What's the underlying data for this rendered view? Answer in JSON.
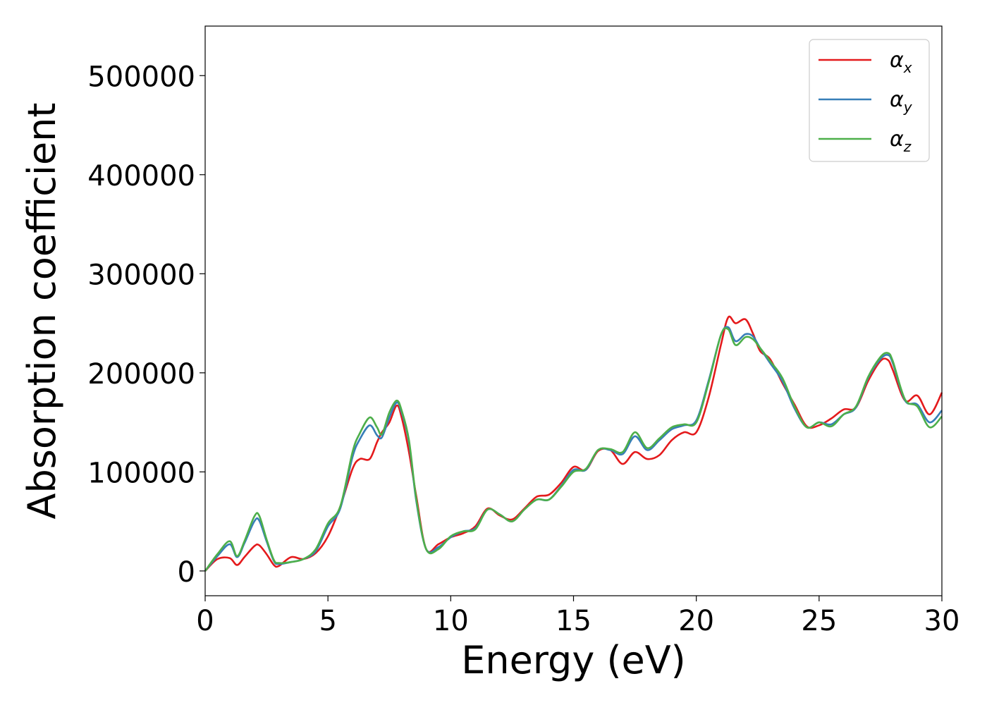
{
  "chart_data": {
    "type": "line",
    "xlabel": "Energy (eV)",
    "ylabel": "Absorption coefficient",
    "xlim": [
      0,
      30
    ],
    "ylim": [
      -25000,
      550000
    ],
    "xticks": [
      0,
      5,
      10,
      15,
      20,
      25,
      30
    ],
    "yticks": [
      0,
      100000,
      200000,
      300000,
      400000,
      500000
    ],
    "grid": false,
    "legend_position": "top-right",
    "x": [
      0,
      0.5,
      1,
      1.3,
      1.6,
      2,
      2.2,
      2.5,
      2.8,
      3,
      3.5,
      4,
      4.5,
      5,
      5.5,
      6,
      6.3,
      6.7,
      7,
      7.2,
      7.5,
      7.8,
      8,
      8.3,
      8.6,
      9,
      9.5,
      10,
      10.5,
      11,
      11.5,
      12,
      12.5,
      13,
      13.5,
      14,
      14.5,
      15,
      15.5,
      16,
      16.5,
      17,
      17.5,
      18,
      18.5,
      19,
      19.5,
      20,
      20.5,
      21,
      21.3,
      21.6,
      22,
      22.3,
      22.6,
      23,
      23.5,
      24,
      24.5,
      25,
      25.5,
      26,
      26.5,
      27,
      27.5,
      27.8,
      28,
      28.5,
      29,
      29.5,
      30
    ],
    "series": [
      {
        "name": "α",
        "subscript": "x",
        "color": "#e41a1c",
        "values": [
          0,
          12000,
          13000,
          6000,
          14000,
          25000,
          26000,
          17000,
          6000,
          5000,
          14000,
          12000,
          18000,
          35000,
          65000,
          103000,
          113000,
          113000,
          130000,
          140000,
          150000,
          167000,
          155000,
          120000,
          75000,
          22000,
          27000,
          34000,
          38000,
          45000,
          63000,
          56000,
          52000,
          63000,
          75000,
          77000,
          89000,
          105000,
          102000,
          121000,
          122000,
          108000,
          120000,
          113000,
          117000,
          132000,
          140000,
          140000,
          175000,
          228000,
          256000,
          250000,
          254000,
          240000,
          222000,
          214000,
          190000,
          168000,
          146000,
          147000,
          154000,
          163000,
          165000,
          192000,
          212000,
          213000,
          203000,
          172000,
          177000,
          158000,
          180000
        ]
      },
      {
        "name": "α",
        "subscript": "y",
        "color": "#377eb8",
        "values": [
          0,
          15000,
          27000,
          14000,
          28000,
          50000,
          51000,
          30000,
          10000,
          7000,
          9000,
          12000,
          20000,
          45000,
          63000,
          115000,
          133000,
          147000,
          137000,
          135000,
          155000,
          170000,
          160000,
          130000,
          70000,
          22000,
          24000,
          34000,
          40000,
          43000,
          62000,
          57000,
          50000,
          62000,
          72000,
          72000,
          86000,
          102000,
          102000,
          122000,
          122000,
          118000,
          136000,
          122000,
          132000,
          143000,
          147000,
          152000,
          192000,
          238000,
          246000,
          232000,
          239000,
          237000,
          225000,
          210000,
          192000,
          164000,
          145000,
          150000,
          148000,
          158000,
          165000,
          195000,
          214000,
          218000,
          210000,
          172000,
          168000,
          150000,
          162000
        ]
      },
      {
        "name": "α",
        "subscript": "z",
        "color": "#4daf4a",
        "values": [
          0,
          17000,
          30000,
          15000,
          30000,
          55000,
          56000,
          32000,
          11000,
          8000,
          9000,
          12000,
          22000,
          48000,
          65000,
          120000,
          139000,
          155000,
          145000,
          138000,
          160000,
          172000,
          162000,
          132000,
          72000,
          22000,
          22000,
          35000,
          40000,
          42000,
          62000,
          57000,
          50000,
          62000,
          72000,
          72000,
          85000,
          100000,
          103000,
          122000,
          123000,
          120000,
          140000,
          124000,
          134000,
          145000,
          148000,
          150000,
          190000,
          238000,
          244000,
          228000,
          236000,
          234000,
          225000,
          212000,
          195000,
          166000,
          145000,
          150000,
          146000,
          158000,
          166000,
          196000,
          216000,
          220000,
          212000,
          173000,
          166000,
          145000,
          156000
        ]
      }
    ]
  }
}
